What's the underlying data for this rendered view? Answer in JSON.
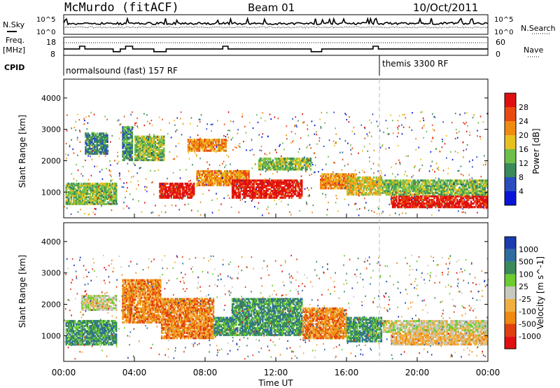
{
  "header": {
    "station": "McMurdo (fitACF)",
    "beam": "Beam 01",
    "date": "10/Oct/2011"
  },
  "strips": {
    "nsky_label": "N.Sky",
    "nsearch_label": "N.Search",
    "nsky_ticks": [
      "10^5",
      "10^0"
    ],
    "nsearch_ticks": [
      "10^5",
      "10^0"
    ],
    "freq_label_1": "Freq.",
    "freq_label_2": "[MHz]",
    "freq_ticks": [
      "18",
      "8"
    ],
    "nave_label": "Nave",
    "nave_ticks": [
      "60",
      "0"
    ],
    "cpid_label": "CPID",
    "cpid_segments": [
      {
        "label": "normalsound (fast) 157 RF",
        "start_hour": 0
      },
      {
        "label": "themis 3300 RF",
        "start_hour": 18
      }
    ],
    "freq_trace": [
      {
        "h": 0.0,
        "v": 11.5
      },
      {
        "h": 0.9,
        "v": 11.5
      },
      {
        "h": 0.9,
        "v": 13
      },
      {
        "h": 1.2,
        "v": 13
      },
      {
        "h": 1.2,
        "v": 11.5
      },
      {
        "h": 2.8,
        "v": 11.5
      },
      {
        "h": 2.8,
        "v": 10
      },
      {
        "h": 3.2,
        "v": 10
      },
      {
        "h": 3.2,
        "v": 11.5
      },
      {
        "h": 3.5,
        "v": 11.5
      },
      {
        "h": 3.5,
        "v": 13
      },
      {
        "h": 3.9,
        "v": 13
      },
      {
        "h": 3.9,
        "v": 11.5
      },
      {
        "h": 5.1,
        "v": 11.5
      },
      {
        "h": 5.1,
        "v": 10
      },
      {
        "h": 5.8,
        "v": 10
      },
      {
        "h": 5.8,
        "v": 11.5
      },
      {
        "h": 9.0,
        "v": 11.5
      },
      {
        "h": 9.0,
        "v": 13
      },
      {
        "h": 9.3,
        "v": 13
      },
      {
        "h": 9.3,
        "v": 11.5
      },
      {
        "h": 14.0,
        "v": 11.5
      },
      {
        "h": 14.0,
        "v": 10
      },
      {
        "h": 14.6,
        "v": 10
      },
      {
        "h": 14.6,
        "v": 11.5
      },
      {
        "h": 17.5,
        "v": 11.5
      },
      {
        "h": 17.5,
        "v": 13
      },
      {
        "h": 17.8,
        "v": 13
      },
      {
        "h": 17.8,
        "v": 11.5
      },
      {
        "h": 24.0,
        "v": 11.5
      }
    ]
  },
  "chart_data": [
    {
      "type": "heatmap",
      "quantity": "Power",
      "xlabel": "",
      "ylabel": "Slant Range [km]",
      "xlim": [
        0,
        24
      ],
      "ylim": [
        180,
        4600
      ],
      "yticks": [
        1000,
        2000,
        3000,
        4000
      ],
      "colorbar": {
        "label": "Power [dB]",
        "ticks": [
          "4",
          "8",
          "12",
          "16",
          "20",
          "24",
          "28"
        ],
        "colors": [
          "#0a14d8",
          "#2a4ec0",
          "#3a8a5a",
          "#6ebf4a",
          "#e8c020",
          "#f08a10",
          "#e84a10",
          "#e01010"
        ]
      },
      "regions": [
        {
          "t0": 0.1,
          "t1": 3.0,
          "r0": 600,
          "r1": 1300,
          "level": 3
        },
        {
          "t0": 1.2,
          "t1": 2.5,
          "r0": 2200,
          "r1": 2900,
          "level": 2
        },
        {
          "t0": 3.3,
          "t1": 3.9,
          "r0": 2000,
          "r1": 3100,
          "level": 2
        },
        {
          "t0": 4.0,
          "t1": 5.7,
          "r0": 2000,
          "r1": 2800,
          "level": 3
        },
        {
          "t0": 5.4,
          "t1": 7.4,
          "r0": 800,
          "r1": 1300,
          "level": 7
        },
        {
          "t0": 7.0,
          "t1": 9.2,
          "r0": 2300,
          "r1": 2700,
          "level": 5
        },
        {
          "t0": 7.5,
          "t1": 10.5,
          "r0": 1200,
          "r1": 1700,
          "level": 5
        },
        {
          "t0": 9.5,
          "t1": 13.5,
          "r0": 800,
          "r1": 1400,
          "level": 7
        },
        {
          "t0": 11.0,
          "t1": 14.0,
          "r0": 1700,
          "r1": 2100,
          "level": 3
        },
        {
          "t0": 14.5,
          "t1": 16.5,
          "r0": 1100,
          "r1": 1600,
          "level": 5
        },
        {
          "t0": 16.0,
          "t1": 18.0,
          "r0": 900,
          "r1": 1500,
          "level": 4
        },
        {
          "t0": 18.5,
          "t1": 24.0,
          "r0": 500,
          "r1": 900,
          "level": 7
        },
        {
          "t0": 18.0,
          "t1": 24.0,
          "r0": 900,
          "r1": 1400,
          "level": 3
        }
      ]
    },
    {
      "type": "heatmap",
      "quantity": "Velocity",
      "xlabel": "Time UT",
      "ylabel": "Slant Range [km]",
      "xlim": [
        0,
        24
      ],
      "ylim": [
        180,
        4600
      ],
      "yticks": [
        1000,
        2000,
        3000,
        4000
      ],
      "xticks": [
        "00:00",
        "04:00",
        "08:00",
        "12:00",
        "16:00",
        "20:00",
        "00:00"
      ],
      "colorbar": {
        "label": "Velocity [m s^-1]",
        "ticks": [
          "1000",
          "500",
          "100",
          "25",
          "-25",
          "-100",
          "-500",
          "-1000"
        ],
        "colors": [
          "#1a3cb0",
          "#2e6e9e",
          "#3a8a5a",
          "#6ccc30",
          "#c8c8c0",
          "#f0b040",
          "#f08a10",
          "#e04010",
          "#e01010"
        ]
      },
      "regions": [
        {
          "t0": 0.1,
          "t1": 3.0,
          "r0": 700,
          "r1": 1500,
          "level": 6
        },
        {
          "t0": 1.0,
          "t1": 3.0,
          "r0": 1800,
          "r1": 2300,
          "level": 4
        },
        {
          "t0": 3.3,
          "t1": 5.5,
          "r0": 1400,
          "r1": 2800,
          "level": 2
        },
        {
          "t0": 5.5,
          "t1": 8.5,
          "r0": 900,
          "r1": 2200,
          "level": 2
        },
        {
          "t0": 8.5,
          "t1": 9.5,
          "r0": 1000,
          "r1": 1600,
          "level": 6
        },
        {
          "t0": 9.5,
          "t1": 13.5,
          "r0": 1000,
          "r1": 2200,
          "level": 6
        },
        {
          "t0": 13.5,
          "t1": 16.0,
          "r0": 900,
          "r1": 1900,
          "level": 2
        },
        {
          "t0": 16.0,
          "t1": 18.0,
          "r0": 800,
          "r1": 1600,
          "level": 6
        },
        {
          "t0": 18.0,
          "t1": 24.0,
          "r0": 1100,
          "r1": 1500,
          "level": 4
        },
        {
          "t0": 18.5,
          "t1": 24.0,
          "r0": 700,
          "r1": 1100,
          "level": 3
        }
      ]
    }
  ]
}
